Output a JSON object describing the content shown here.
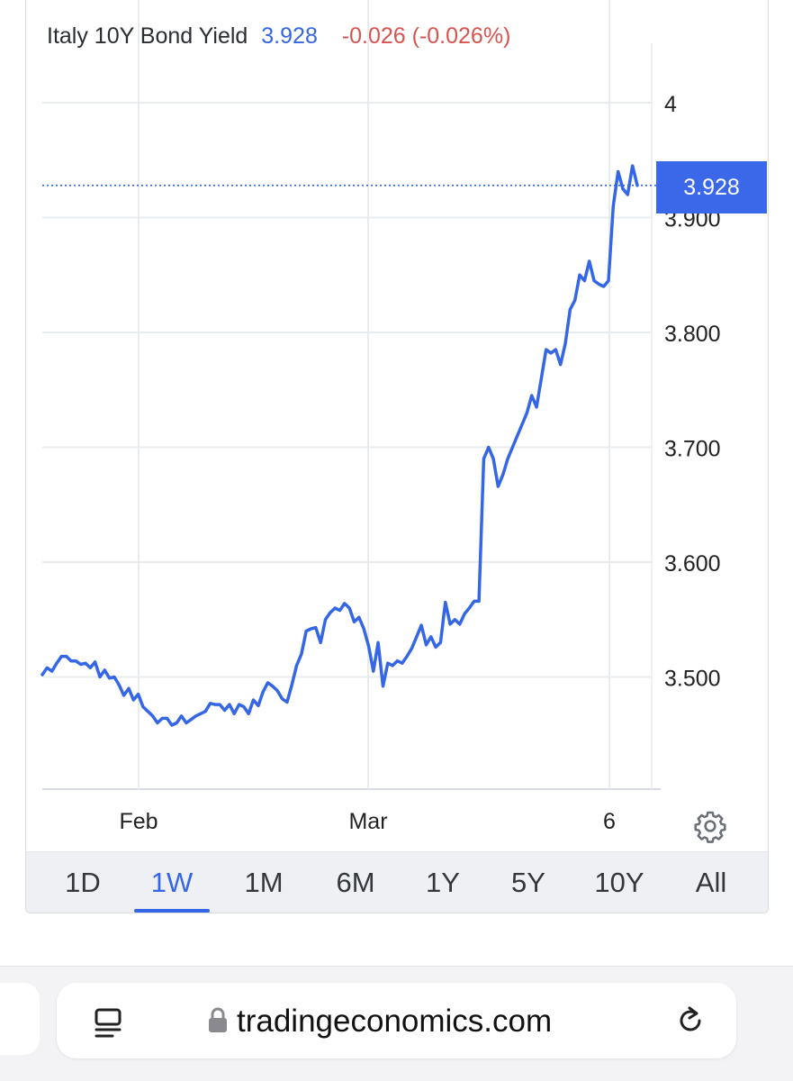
{
  "header": {
    "title": "Italy 10Y Bond Yield",
    "last": "3.928",
    "change": "-0.026 (-0.026%)"
  },
  "price_badge": "3.928",
  "colors": {
    "line": "#3566e6",
    "badge": "#3a68e8",
    "negative": "#d9534f",
    "grid": "#e9ecef"
  },
  "chart_data": {
    "type": "line",
    "title": "Italy 10Y Bond Yield",
    "xlabel": "",
    "ylabel": "",
    "ylim": [
      3.4,
      4.0
    ],
    "y_ticks": [
      "4",
      "3.900",
      "3.800",
      "3.700",
      "3.600",
      "3.500"
    ],
    "x_ticks": [
      "Feb",
      "Mar",
      "6"
    ],
    "grid": true,
    "last_value": 3.928,
    "series": [
      {
        "points": [
          [
            0,
            3.502
          ],
          [
            1,
            3.508
          ],
          [
            2,
            3.505
          ],
          [
            3,
            3.512
          ],
          [
            4,
            3.518
          ],
          [
            5,
            3.518
          ],
          [
            6,
            3.514
          ],
          [
            7,
            3.514
          ],
          [
            8,
            3.511
          ],
          [
            9,
            3.512
          ],
          [
            10,
            3.508
          ],
          [
            11,
            3.513
          ],
          [
            12,
            3.5
          ],
          [
            13,
            3.506
          ],
          [
            14,
            3.499
          ],
          [
            15,
            3.5
          ],
          [
            16,
            3.493
          ],
          [
            17,
            3.484
          ],
          [
            18,
            3.49
          ],
          [
            19,
            3.48
          ],
          [
            20,
            3.485
          ],
          [
            21,
            3.474
          ],
          [
            22,
            3.47
          ],
          [
            23,
            3.466
          ],
          [
            24,
            3.46
          ],
          [
            25,
            3.464
          ],
          [
            26,
            3.464
          ],
          [
            27,
            3.458
          ],
          [
            28,
            3.46
          ],
          [
            29,
            3.466
          ],
          [
            30,
            3.46
          ],
          [
            31,
            3.463
          ],
          [
            32,
            3.466
          ],
          [
            33,
            3.468
          ],
          [
            34,
            3.47
          ],
          [
            35,
            3.477
          ],
          [
            36,
            3.476
          ],
          [
            37,
            3.476
          ],
          [
            38,
            3.471
          ],
          [
            39,
            3.476
          ],
          [
            40,
            3.468
          ],
          [
            41,
            3.476
          ],
          [
            42,
            3.474
          ],
          [
            43,
            3.468
          ],
          [
            44,
            3.48
          ],
          [
            45,
            3.475
          ],
          [
            46,
            3.487
          ],
          [
            47,
            3.495
          ],
          [
            48,
            3.492
          ],
          [
            49,
            3.488
          ],
          [
            50,
            3.481
          ],
          [
            51,
            3.478
          ],
          [
            52,
            3.493
          ],
          [
            53,
            3.51
          ],
          [
            54,
            3.52
          ],
          [
            55,
            3.54
          ],
          [
            56,
            3.542
          ],
          [
            57,
            3.543
          ],
          [
            58,
            3.53
          ],
          [
            59,
            3.55
          ],
          [
            60,
            3.556
          ],
          [
            61,
            3.56
          ],
          [
            62,
            3.558
          ],
          [
            63,
            3.564
          ],
          [
            64,
            3.56
          ],
          [
            65,
            3.548
          ],
          [
            66,
            3.552
          ],
          [
            67,
            3.542
          ],
          [
            68,
            3.527
          ],
          [
            69,
            3.505
          ],
          [
            70,
            3.53
          ],
          [
            71,
            3.492
          ],
          [
            72,
            3.512
          ],
          [
            73,
            3.51
          ],
          [
            74,
            3.514
          ],
          [
            75,
            3.512
          ],
          [
            76,
            3.518
          ],
          [
            77,
            3.525
          ],
          [
            78,
            3.535
          ],
          [
            79,
            3.545
          ],
          [
            80,
            3.528
          ],
          [
            81,
            3.535
          ],
          [
            82,
            3.526
          ],
          [
            83,
            3.53
          ],
          [
            84,
            3.565
          ],
          [
            85,
            3.546
          ],
          [
            86,
            3.55
          ],
          [
            87,
            3.546
          ],
          [
            88,
            3.555
          ],
          [
            89,
            3.56
          ],
          [
            90,
            3.566
          ],
          [
            91,
            3.566
          ],
          [
            92,
            3.69
          ],
          [
            93,
            3.7
          ],
          [
            94,
            3.69
          ],
          [
            95,
            3.666
          ],
          [
            96,
            3.676
          ],
          [
            97,
            3.69
          ],
          [
            98,
            3.7
          ],
          [
            99,
            3.71
          ],
          [
            100,
            3.72
          ],
          [
            101,
            3.73
          ],
          [
            102,
            3.745
          ],
          [
            103,
            3.735
          ],
          [
            104,
            3.76
          ],
          [
            105,
            3.785
          ],
          [
            106,
            3.782
          ],
          [
            107,
            3.785
          ],
          [
            108,
            3.772
          ],
          [
            109,
            3.79
          ],
          [
            110,
            3.82
          ],
          [
            111,
            3.828
          ],
          [
            112,
            3.85
          ],
          [
            113,
            3.845
          ],
          [
            114,
            3.862
          ],
          [
            115,
            3.845
          ],
          [
            116,
            3.842
          ],
          [
            117,
            3.84
          ],
          [
            118,
            3.845
          ],
          [
            119,
            3.91
          ],
          [
            120,
            3.94
          ],
          [
            121,
            3.925
          ],
          [
            122,
            3.92
          ],
          [
            123,
            3.945
          ],
          [
            124,
            3.928
          ]
        ]
      }
    ]
  },
  "time_ranges": [
    "1D",
    "1W",
    "1M",
    "6M",
    "1Y",
    "5Y",
    "10Y",
    "All"
  ],
  "active_range": "1W",
  "browser": {
    "url": "tradingeconomics.com"
  }
}
